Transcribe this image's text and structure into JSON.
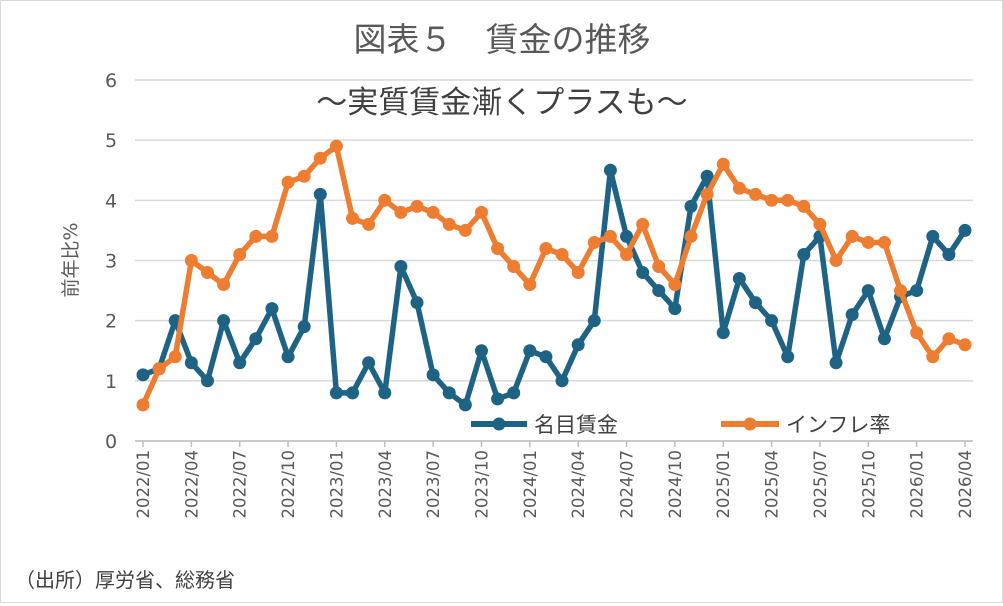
{
  "source_note": "（出所）厚労省、総務省",
  "chart_data": {
    "type": "line",
    "title": "図表５　賃金の推移",
    "subtitle": "～実質賃金漸くプラスも～",
    "ylabel": "前年比%",
    "xlabel": "",
    "ylim": [
      0,
      6
    ],
    "yticks": [
      0,
      1,
      2,
      3,
      4,
      5,
      6
    ],
    "grid": true,
    "legend": "bottom-right",
    "x": [
      "2022/01",
      "2022/02",
      "2022/03",
      "2022/04",
      "2022/05",
      "2022/06",
      "2022/07",
      "2022/08",
      "2022/09",
      "2022/10",
      "2022/11",
      "2022/12",
      "2023/01",
      "2023/02",
      "2023/03",
      "2023/04",
      "2023/05",
      "2023/06",
      "2023/07",
      "2023/08",
      "2023/09",
      "2023/10",
      "2023/11",
      "2023/12",
      "2024/01",
      "2024/02",
      "2024/03",
      "2024/04",
      "2024/05",
      "2024/06",
      "2024/07",
      "2024/08",
      "2024/09",
      "2024/10",
      "2024/11",
      "2024/12",
      "2025/01",
      "2025/02",
      "2025/03",
      "2025/04",
      "2025/05",
      "2025/06",
      "2025/07",
      "2025/08",
      "2025/09",
      "2025/10",
      "2025/11",
      "2025/12",
      "2026/01",
      "2026/02",
      "2026/03",
      "2026/04"
    ],
    "xtick_labels": [
      "2022/01",
      "2022/04",
      "2022/07",
      "2022/10",
      "2023/01",
      "2023/04",
      "2023/07",
      "2023/10",
      "2024/01",
      "2024/04",
      "2024/07",
      "2024/10",
      "2025/01",
      "2025/04",
      "2025/07",
      "2025/10",
      "2026/01",
      "2026/04"
    ],
    "series": [
      {
        "name": "名目賃金",
        "color": "#1f6384",
        "values": [
          1.1,
          1.2,
          2.0,
          1.3,
          1.0,
          2.0,
          1.3,
          1.7,
          2.2,
          1.4,
          1.9,
          4.1,
          0.8,
          0.8,
          1.3,
          0.8,
          2.9,
          2.3,
          1.1,
          0.8,
          0.6,
          1.5,
          0.7,
          0.8,
          1.5,
          1.4,
          1.0,
          1.6,
          2.0,
          4.5,
          3.4,
          2.8,
          2.5,
          2.2,
          3.9,
          4.4,
          1.8,
          2.7,
          2.3,
          2.0,
          1.4,
          3.1,
          3.4,
          1.3,
          2.1,
          2.5,
          1.7,
          2.4,
          2.5,
          3.4,
          3.1,
          3.5
        ]
      },
      {
        "name": "インフレ率",
        "color": "#ed7d31",
        "values": [
          0.6,
          1.2,
          1.4,
          3.0,
          2.8,
          2.6,
          3.1,
          3.4,
          3.4,
          4.3,
          4.4,
          4.7,
          4.9,
          3.7,
          3.6,
          4.0,
          3.8,
          3.9,
          3.8,
          3.6,
          3.5,
          3.8,
          3.2,
          2.9,
          2.6,
          3.2,
          3.1,
          2.8,
          3.3,
          3.4,
          3.1,
          3.6,
          2.9,
          2.6,
          3.4,
          4.1,
          4.6,
          4.2,
          4.1,
          4.0,
          4.0,
          3.9,
          3.6,
          3.0,
          3.4,
          3.3,
          3.3,
          2.5,
          1.8,
          1.4,
          1.7,
          1.6
        ]
      }
    ]
  }
}
